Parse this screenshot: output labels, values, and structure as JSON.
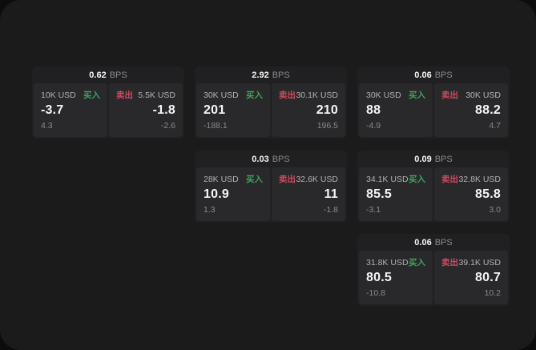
{
  "theme": {
    "page_bg": "#0c0c0c",
    "container_bg": "#1b1b1c",
    "card_bg": "#202022",
    "panel_bg": "#29292b",
    "text_primary": "#f5f5f5",
    "text_secondary": "#8a8a8e",
    "text_label": "#b2b2b6",
    "buy_color": "#3fa35a",
    "sell_color": "#cf4a60"
  },
  "labels": {
    "bps_unit": "BPS",
    "buy": "买入",
    "sell": "卖出"
  },
  "cards": [
    {
      "row": 1,
      "col": 1,
      "bps": "0.62",
      "buy": {
        "size": "10K USD",
        "value": "-3.7",
        "delta": "4.3"
      },
      "sell": {
        "size": "5.5K USD",
        "value": "-1.8",
        "delta": "-2.6"
      }
    },
    {
      "row": 1,
      "col": 2,
      "bps": "2.92",
      "buy": {
        "size": "30K USD",
        "value": "201",
        "delta": "-188.1"
      },
      "sell": {
        "size": "30.1K USD",
        "value": "210",
        "delta": "196.5"
      }
    },
    {
      "row": 1,
      "col": 3,
      "bps": "0.06",
      "buy": {
        "size": "30K USD",
        "value": "88",
        "delta": "-4.9"
      },
      "sell": {
        "size": "30K USD",
        "value": "88.2",
        "delta": "4.7"
      }
    },
    {
      "row": 2,
      "col": 2,
      "bps": "0.03",
      "buy": {
        "size": "28K USD",
        "value": "10.9",
        "delta": "1.3"
      },
      "sell": {
        "size": "32.6K USD",
        "value": "11",
        "delta": "-1.8"
      }
    },
    {
      "row": 2,
      "col": 3,
      "bps": "0.09",
      "buy": {
        "size": "34.1K USD",
        "value": "85.5",
        "delta": "-3.1"
      },
      "sell": {
        "size": "32.8K USD",
        "value": "85.8",
        "delta": "3.0"
      }
    },
    {
      "row": 3,
      "col": 3,
      "bps": "0.06",
      "buy": {
        "size": "31.8K USD",
        "value": "80.5",
        "delta": "-10.8"
      },
      "sell": {
        "size": "39.1K USD",
        "value": "80.7",
        "delta": "10.2"
      }
    }
  ]
}
